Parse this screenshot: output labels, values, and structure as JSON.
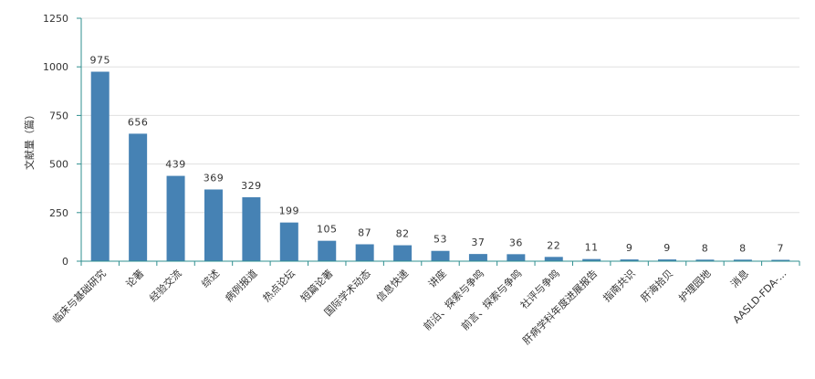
{
  "chart_data": {
    "type": "bar",
    "ylabel": "文献量（篇）",
    "ylim": [
      0,
      1250
    ],
    "yticks": [
      0,
      250,
      500,
      750,
      1000,
      1250
    ],
    "grid": true,
    "categories": [
      "临床与基础研究",
      "论著",
      "经验交流",
      "综述",
      "病例报道",
      "热点论坛",
      "短篇论著",
      "国际学术动态",
      "信息快递",
      "讲座",
      "前沿、探索与争鸣",
      "前言、探索与争鸣",
      "社评与争鸣",
      "肝病学科年度进展报告",
      "指南共识",
      "肝海拾贝",
      "护理园地",
      "消息",
      "AASLD-FDA-..."
    ],
    "values": [
      975,
      656,
      439,
      369,
      329,
      199,
      105,
      87,
      82,
      53,
      37,
      36,
      22,
      11,
      9,
      9,
      8,
      8,
      7
    ],
    "bar_color": "#4682b4",
    "axis_color": "#2f8f8f",
    "grid_color": "#e0e0e0"
  }
}
